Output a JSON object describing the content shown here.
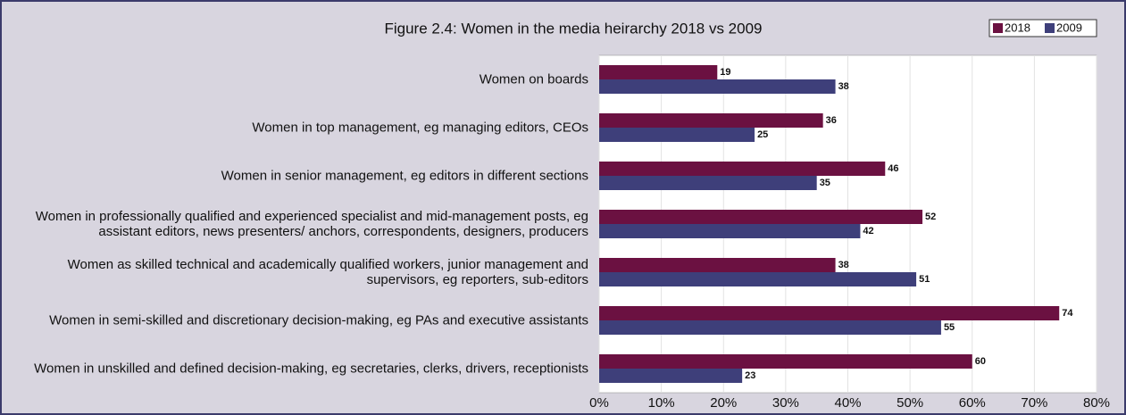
{
  "chart_data": {
    "type": "hbar",
    "title": "Figure 2.4: Women in the media heirarchy 2018 vs 2009",
    "categories": [
      "Women on boards",
      "Women in top management, eg managing editors, CEOs",
      "Women in senior management, eg editors in different sections",
      "Women in professionally qualified and experienced specialist and mid-management posts, eg assistant editors, news presenters/ anchors, correspondents, designers, producers",
      "Women as skilled technical and academically qualified workers, junior management and supervisors, eg reporters, sub-editors",
      "Women in semi-skilled and discretionary decision-making, eg PAs and executive assistants",
      "Women in unskilled and defined decision-making, eg secretaries, clerks, drivers, receptionists"
    ],
    "series": [
      {
        "name": "2018",
        "color": "#6b1141",
        "values": [
          19,
          36,
          46,
          52,
          38,
          74,
          60
        ]
      },
      {
        "name": "2009",
        "color": "#3e3f7a",
        "values": [
          38,
          25,
          35,
          42,
          51,
          55,
          23
        ]
      }
    ],
    "xlim": [
      0,
      80
    ],
    "xticks": [
      {
        "value": 0,
        "label": "0%"
      },
      {
        "value": 10,
        "label": "10%"
      },
      {
        "value": 20,
        "label": "20%"
      },
      {
        "value": 30,
        "label": "30%"
      },
      {
        "value": 40,
        "label": "40%"
      },
      {
        "value": 50,
        "label": "50%"
      },
      {
        "value": 60,
        "label": "60%"
      },
      {
        "value": 70,
        "label": "70%"
      },
      {
        "value": 80,
        "label": "80%"
      }
    ],
    "grid": true,
    "legend": "top-right"
  }
}
